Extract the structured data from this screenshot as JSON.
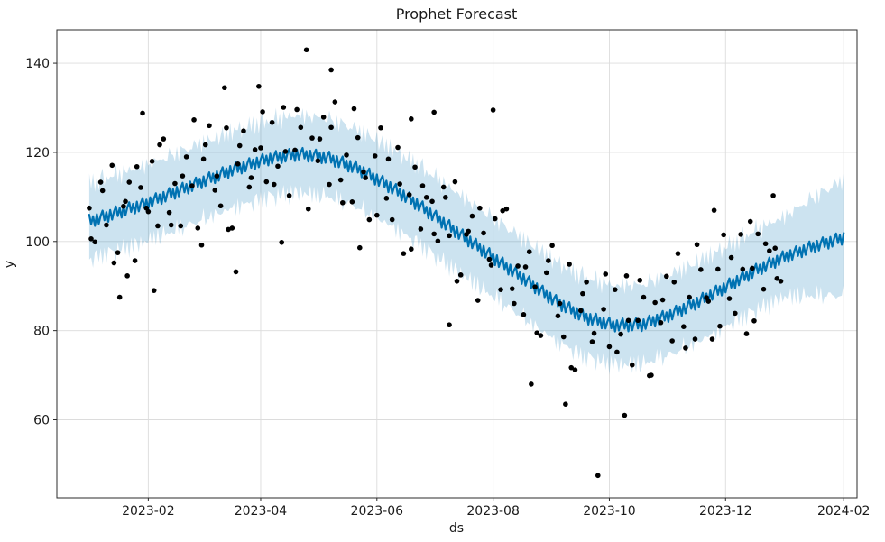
{
  "chart_data": {
    "type": "line",
    "title": "Prophet Forecast",
    "xlabel": "ds",
    "ylabel": "y",
    "x_unit": "days since 2023-01-01",
    "xlim": [
      -17,
      403
    ],
    "ylim": [
      42.5,
      147.5
    ],
    "grid": true,
    "legend": "none",
    "x_ticks": [
      {
        "day": 31,
        "label": "2023-02"
      },
      {
        "day": 90,
        "label": "2023-04"
      },
      {
        "day": 151,
        "label": "2023-06"
      },
      {
        "day": 212,
        "label": "2023-08"
      },
      {
        "day": 273,
        "label": "2023-10"
      },
      {
        "day": 334,
        "label": "2023-12"
      },
      {
        "day": 396,
        "label": "2024-02"
      }
    ],
    "y_ticks": [
      60,
      80,
      100,
      120,
      140
    ],
    "colors": {
      "forecast_line": "#0072B2",
      "uncertainty_band": "#0072B2",
      "observations": "#000000",
      "grid": "#dcdcdc",
      "spine": "#2b2b2b"
    },
    "series": [
      {
        "name": "yhat (forecast)",
        "type": "forecast-line",
        "color": "#0072B2",
        "stroke_width": 2.2,
        "day_range": [
          0,
          396
        ],
        "trend_points": [
          [
            0,
            104.5
          ],
          [
            15,
            106.5
          ],
          [
            30,
            108.5
          ],
          [
            45,
            111
          ],
          [
            60,
            113.5
          ],
          [
            75,
            116
          ],
          [
            90,
            118
          ],
          [
            95,
            118.6
          ],
          [
            110,
            119.6
          ],
          [
            125,
            118.8
          ],
          [
            140,
            116.5
          ],
          [
            155,
            113
          ],
          [
            170,
            109
          ],
          [
            185,
            104.5
          ],
          [
            200,
            100
          ],
          [
            215,
            95.5
          ],
          [
            230,
            91
          ],
          [
            245,
            86.5
          ],
          [
            260,
            83
          ],
          [
            275,
            81.2
          ],
          [
            290,
            81.3
          ],
          [
            305,
            83.5
          ],
          [
            320,
            86.5
          ],
          [
            335,
            90
          ],
          [
            350,
            93.5
          ],
          [
            365,
            96.5
          ],
          [
            380,
            98.8
          ],
          [
            396,
            100.8
          ]
        ],
        "weekly_pattern": [
          1.5,
          -0.8,
          0.9,
          -1.4,
          1.1,
          -1.2,
          0.5
        ]
      },
      {
        "name": "uncertainty interval (yhat_lower / yhat_upper)",
        "type": "band",
        "fill": "#0072B2",
        "opacity": 0.2,
        "half_width_points": [
          [
            0,
            8.5
          ],
          [
            365,
            9
          ],
          [
            396,
            13
          ]
        ],
        "edge_jitter": [
          0.9,
          -0.6,
          1.2,
          -1.0,
          0.4,
          -1.2,
          0.7,
          1.1,
          -0.8,
          -0.3,
          0.6,
          -0.9
        ]
      },
      {
        "name": "y (observations)",
        "type": "scatter",
        "color": "#000000",
        "radius": 2.8,
        "points": [
          [
            0,
            107.5
          ],
          [
            1,
            100.6
          ],
          [
            3,
            99.9
          ],
          [
            6,
            113.3
          ],
          [
            7,
            111.4
          ],
          [
            9,
            103.7
          ],
          [
            12,
            117.1
          ],
          [
            13,
            95.2
          ],
          [
            15,
            97.5
          ],
          [
            16,
            87.5
          ],
          [
            18,
            107.9
          ],
          [
            19,
            109.0
          ],
          [
            20,
            92.3
          ],
          [
            21,
            113.3
          ],
          [
            24,
            95.7
          ],
          [
            25,
            116.8
          ],
          [
            27,
            112.1
          ],
          [
            28,
            128.8
          ],
          [
            30,
            107.5
          ],
          [
            31,
            106.7
          ],
          [
            33,
            118.0
          ],
          [
            34,
            89.0
          ],
          [
            36,
            103.5
          ],
          [
            37,
            121.7
          ],
          [
            39,
            123.0
          ],
          [
            42,
            106.5
          ],
          [
            43,
            103.7
          ],
          [
            45,
            113.0
          ],
          [
            48,
            103.5
          ],
          [
            49,
            114.7
          ],
          [
            51,
            119.0
          ],
          [
            54,
            112.5
          ],
          [
            55,
            127.3
          ],
          [
            57,
            103.0
          ],
          [
            59,
            99.2
          ],
          [
            60,
            118.5
          ],
          [
            61,
            121.7
          ],
          [
            63,
            126.0
          ],
          [
            66,
            111.5
          ],
          [
            67,
            114.7
          ],
          [
            69,
            108.0
          ],
          [
            71,
            134.5
          ],
          [
            72,
            125.5
          ],
          [
            73,
            102.7
          ],
          [
            75,
            103.0
          ],
          [
            77,
            93.2
          ],
          [
            78,
            117.4
          ],
          [
            79,
            121.5
          ],
          [
            81,
            124.8
          ],
          [
            84,
            112.2
          ],
          [
            85,
            114.3
          ],
          [
            87,
            120.6
          ],
          [
            89,
            134.8
          ],
          [
            90,
            121.0
          ],
          [
            91,
            129.1
          ],
          [
            93,
            113.4
          ],
          [
            96,
            126.7
          ],
          [
            97,
            112.8
          ],
          [
            99,
            116.9
          ],
          [
            101,
            99.8
          ],
          [
            102,
            130.1
          ],
          [
            103,
            120.2
          ],
          [
            105,
            110.3
          ],
          [
            108,
            120.5
          ],
          [
            109,
            129.6
          ],
          [
            111,
            125.6
          ],
          [
            114,
            143.0
          ],
          [
            115,
            107.3
          ],
          [
            117,
            123.2
          ],
          [
            120,
            118.1
          ],
          [
            121,
            123.0
          ],
          [
            123,
            127.9
          ],
          [
            126,
            112.8
          ],
          [
            127,
            138.5
          ],
          [
            127,
            125.6
          ],
          [
            129,
            131.3
          ],
          [
            132,
            113.8
          ],
          [
            133,
            108.7
          ],
          [
            135,
            119.4
          ],
          [
            138,
            108.9
          ],
          [
            139,
            129.8
          ],
          [
            141,
            123.3
          ],
          [
            142,
            98.6
          ],
          [
            144,
            115.6
          ],
          [
            145,
            114.3
          ],
          [
            147,
            104.9
          ],
          [
            150,
            119.2
          ],
          [
            151,
            105.9
          ],
          [
            153,
            125.5
          ],
          [
            156,
            109.7
          ],
          [
            157,
            118.5
          ],
          [
            159,
            104.9
          ],
          [
            162,
            121.1
          ],
          [
            163,
            112.9
          ],
          [
            165,
            97.3
          ],
          [
            168,
            110.5
          ],
          [
            169,
            127.5
          ],
          [
            169,
            98.3
          ],
          [
            171,
            116.7
          ],
          [
            174,
            102.8
          ],
          [
            175,
            112.5
          ],
          [
            177,
            109.9
          ],
          [
            180,
            109.0
          ],
          [
            181,
            129.0
          ],
          [
            181,
            101.7
          ],
          [
            183,
            100.1
          ],
          [
            186,
            112.2
          ],
          [
            187,
            109.9
          ],
          [
            189,
            101.3
          ],
          [
            189,
            81.3
          ],
          [
            192,
            113.4
          ],
          [
            193,
            91.1
          ],
          [
            195,
            92.5
          ],
          [
            198,
            101.6
          ],
          [
            199,
            102.3
          ],
          [
            201,
            105.7
          ],
          [
            204,
            86.8
          ],
          [
            205,
            107.5
          ],
          [
            207,
            101.9
          ],
          [
            210,
            96.0
          ],
          [
            211,
            94.7
          ],
          [
            212,
            129.5
          ],
          [
            213,
            105.1
          ],
          [
            216,
            89.2
          ],
          [
            217,
            106.9
          ],
          [
            219,
            107.3
          ],
          [
            222,
            89.4
          ],
          [
            223,
            86.1
          ],
          [
            225,
            94.5
          ],
          [
            228,
            83.6
          ],
          [
            229,
            94.3
          ],
          [
            231,
            97.7
          ],
          [
            232,
            68.0
          ],
          [
            234,
            89.8
          ],
          [
            235,
            79.5
          ],
          [
            237,
            78.9
          ],
          [
            240,
            93.0
          ],
          [
            241,
            95.7
          ],
          [
            243,
            99.1
          ],
          [
            246,
            83.3
          ],
          [
            247,
            86.1
          ],
          [
            249,
            78.6
          ],
          [
            250,
            63.5
          ],
          [
            252,
            94.9
          ],
          [
            253,
            71.7
          ],
          [
            255,
            71.2
          ],
          [
            258,
            84.5
          ],
          [
            259,
            88.3
          ],
          [
            261,
            90.9
          ],
          [
            264,
            77.5
          ],
          [
            265,
            79.4
          ],
          [
            267,
            47.5
          ],
          [
            270,
            84.8
          ],
          [
            271,
            92.7
          ],
          [
            273,
            76.4
          ],
          [
            276,
            89.2
          ],
          [
            277,
            75.2
          ],
          [
            279,
            79.2
          ],
          [
            281,
            61.0
          ],
          [
            282,
            92.3
          ],
          [
            283,
            82.3
          ],
          [
            285,
            72.3
          ],
          [
            288,
            82.3
          ],
          [
            289,
            91.3
          ],
          [
            291,
            87.5
          ],
          [
            294,
            69.9
          ],
          [
            295,
            70.0
          ],
          [
            297,
            86.3
          ],
          [
            300,
            81.8
          ],
          [
            301,
            86.9
          ],
          [
            303,
            92.2
          ],
          [
            306,
            77.7
          ],
          [
            307,
            90.9
          ],
          [
            309,
            97.3
          ],
          [
            312,
            80.9
          ],
          [
            313,
            76.1
          ],
          [
            315,
            87.5
          ],
          [
            318,
            78.1
          ],
          [
            319,
            99.3
          ],
          [
            321,
            93.7
          ],
          [
            324,
            87.4
          ],
          [
            325,
            86.6
          ],
          [
            327,
            78.1
          ],
          [
            328,
            107.0
          ],
          [
            330,
            93.8
          ],
          [
            331,
            81.0
          ],
          [
            333,
            101.5
          ],
          [
            336,
            87.2
          ],
          [
            337,
            96.4
          ],
          [
            339,
            83.9
          ],
          [
            342,
            101.6
          ],
          [
            343,
            93.8
          ],
          [
            345,
            79.3
          ],
          [
            347,
            104.5
          ],
          [
            348,
            94.0
          ],
          [
            349,
            82.2
          ],
          [
            351,
            101.7
          ],
          [
            354,
            89.3
          ],
          [
            355,
            99.5
          ],
          [
            357,
            97.9
          ],
          [
            359,
            110.3
          ],
          [
            360,
            98.5
          ],
          [
            361,
            91.7
          ],
          [
            363,
            91.1
          ]
        ]
      }
    ]
  }
}
